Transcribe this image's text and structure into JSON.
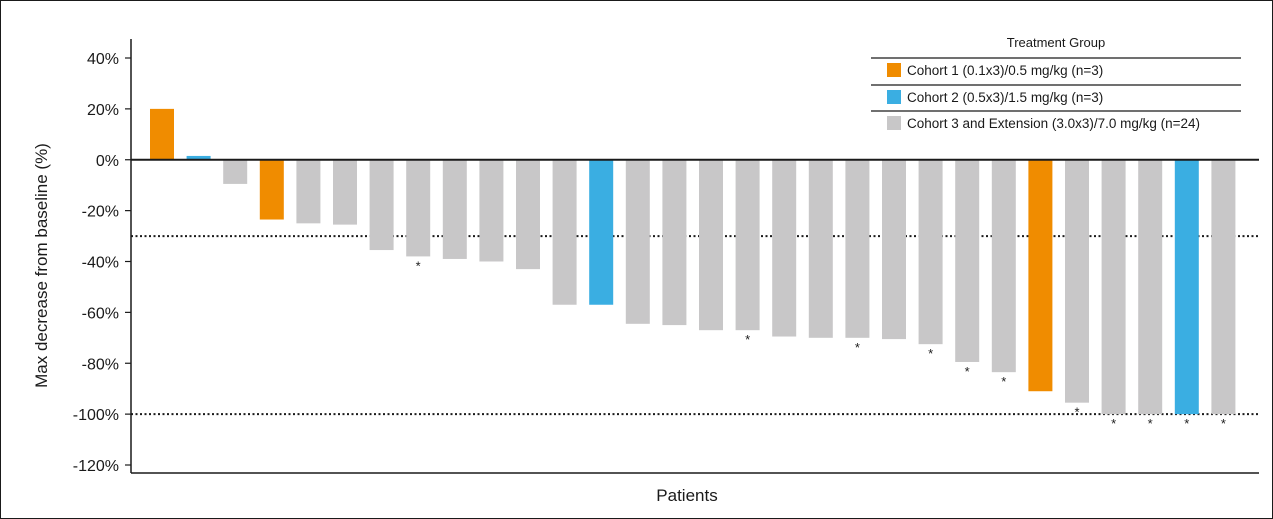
{
  "chart_data": {
    "type": "bar",
    "ylabel": "Max decrease from baseline (%)",
    "xlabel": "Patients",
    "ylim": [
      -120,
      40
    ],
    "yticks": [
      40,
      20,
      0,
      -20,
      -40,
      -60,
      -80,
      -100,
      -120
    ],
    "ytick_labels": [
      "40%",
      "20%",
      "0%",
      "-20%",
      "-40%",
      "-60%",
      "-80%",
      "-100%",
      "-120%"
    ],
    "reference_lines": [
      -30,
      -100
    ],
    "grid": false,
    "legend": {
      "placement": "top-right",
      "title": "Treatment Group",
      "entries": [
        {
          "key": "c1",
          "label": "Cohort 1 (0.1x3)/0.5 mg/kg (n=3)",
          "color": "#f08c00"
        },
        {
          "key": "c2",
          "label": "Cohort 2 (0.5x3)/1.5 mg/kg (n=3)",
          "color": "#3aaee2"
        },
        {
          "key": "c3",
          "label": "Cohort 3 and Extension (3.0x3)/7.0 mg/kg (n=24)",
          "color": "#c8c7c8"
        }
      ]
    },
    "marker_symbol": "*",
    "bars": [
      {
        "value": 20,
        "group": "c1",
        "marked": false
      },
      {
        "value": 1.5,
        "group": "c2",
        "marked": false
      },
      {
        "value": -9.5,
        "group": "c3",
        "marked": false
      },
      {
        "value": -23.5,
        "group": "c1",
        "marked": false
      },
      {
        "value": -25,
        "group": "c3",
        "marked": false
      },
      {
        "value": -25.5,
        "group": "c3",
        "marked": false
      },
      {
        "value": -35.5,
        "group": "c3",
        "marked": false
      },
      {
        "value": -38,
        "group": "c3",
        "marked": true
      },
      {
        "value": -39,
        "group": "c3",
        "marked": false
      },
      {
        "value": -40,
        "group": "c3",
        "marked": false
      },
      {
        "value": -43,
        "group": "c3",
        "marked": false
      },
      {
        "value": -57,
        "group": "c3",
        "marked": false
      },
      {
        "value": -57,
        "group": "c2",
        "marked": false
      },
      {
        "value": -64.5,
        "group": "c3",
        "marked": false
      },
      {
        "value": -65,
        "group": "c3",
        "marked": false
      },
      {
        "value": -67,
        "group": "c3",
        "marked": false
      },
      {
        "value": -67,
        "group": "c3",
        "marked": true
      },
      {
        "value": -69.5,
        "group": "c3",
        "marked": false
      },
      {
        "value": -70,
        "group": "c3",
        "marked": false
      },
      {
        "value": -70,
        "group": "c3",
        "marked": true
      },
      {
        "value": -70.5,
        "group": "c3",
        "marked": false
      },
      {
        "value": -72.5,
        "group": "c3",
        "marked": true
      },
      {
        "value": -79.5,
        "group": "c3",
        "marked": true
      },
      {
        "value": -83.5,
        "group": "c3",
        "marked": true
      },
      {
        "value": -91,
        "group": "c1",
        "marked": false
      },
      {
        "value": -95.5,
        "group": "c3",
        "marked": true
      },
      {
        "value": -100,
        "group": "c3",
        "marked": true
      },
      {
        "value": -100,
        "group": "c3",
        "marked": true
      },
      {
        "value": -100,
        "group": "c2",
        "marked": true
      },
      {
        "value": -100,
        "group": "c3",
        "marked": true
      }
    ]
  }
}
